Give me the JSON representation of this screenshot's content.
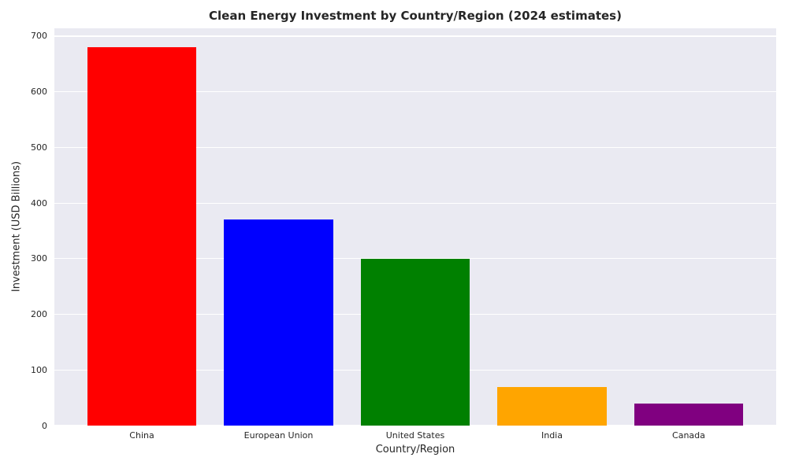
{
  "chart_data": {
    "type": "bar",
    "title": "Clean Energy Investment by Country/Region (2024 estimates)",
    "xlabel": "Country/Region",
    "ylabel": "Investment (USD Billions)",
    "categories": [
      "China",
      "European Union",
      "United States",
      "India",
      "Canada"
    ],
    "values": [
      680,
      370,
      300,
      70,
      40
    ],
    "bar_colors": [
      "#ff0000",
      "#0000ff",
      "#008000",
      "#ffa500",
      "#800080"
    ],
    "yticks": [
      0,
      100,
      200,
      300,
      400,
      500,
      600,
      700
    ],
    "ylim": [
      0,
      714
    ],
    "grid": true,
    "legend_position": "none",
    "plot_background_color": "#eaeaf2",
    "gridline_color": "#ffffff",
    "bar_width_fraction": 0.8,
    "xlim_units": [
      -0.64,
      4.64
    ]
  }
}
